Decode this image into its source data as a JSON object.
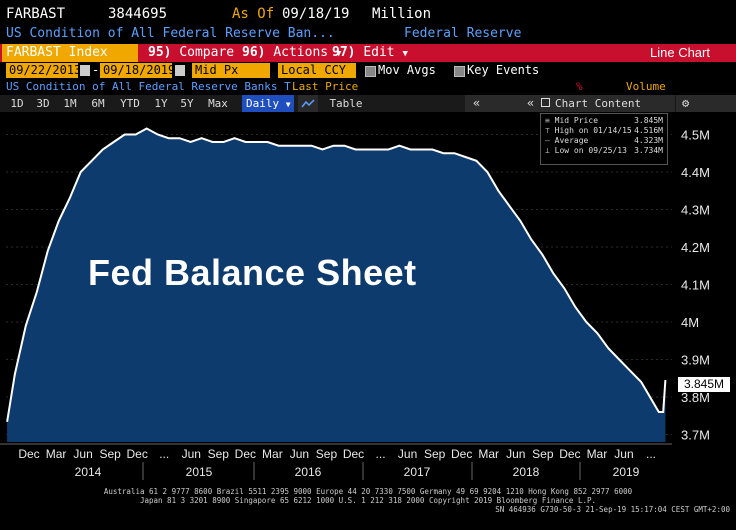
{
  "header": {
    "ticker": "FARBAST",
    "value": "3844695",
    "asof_label": "As Of",
    "asof_date": "09/18/19",
    "unit": "Million",
    "description": "US Condition of All Federal Reserve Ban...",
    "source": "Federal Reserve"
  },
  "menubar": {
    "security": "FARBAST Index",
    "compare_num": "95)",
    "compare": "Compare",
    "actions_num": "96)",
    "actions": "Actions",
    "edit_num": "97)",
    "edit": "Edit",
    "view": "Line Chart"
  },
  "controls": {
    "start_date": "09/22/2013",
    "end_date": "09/18/2019",
    "price_field": "Mid Px",
    "currency": "Local CCY",
    "mov_avgs": "Mov Avgs",
    "key_events": "Key Events"
  },
  "info_row": {
    "security_desc": "US Condition of All Federal Reserve Banks T...",
    "last_price": "Last Price",
    "pct": "%",
    "volume": "Volume"
  },
  "toolbar": {
    "ranges": [
      "1D",
      "3D",
      "1M",
      "6M",
      "YTD",
      "1Y",
      "5Y",
      "Max"
    ],
    "frequency": "Daily",
    "table": "Table",
    "chart_content": "Chart Content"
  },
  "legend": {
    "mid_price_label": "Mid Price",
    "mid_price_value": "3.845M",
    "high_label": "High on 01/14/15",
    "high_value": "4.516M",
    "average_label": "Average",
    "average_value": "4.323M",
    "low_label": "Low on 09/25/13",
    "low_value": "3.734M"
  },
  "overlay_title": "Fed Balance Sheet",
  "last_value": "3.845M",
  "colors": {
    "area_fill": "#0d3b6e",
    "line": "#ffffff",
    "bar_red": "#c8102e",
    "field_amber": "#f0a800",
    "text_amber": "#f0a800",
    "text_blue": "#5aa0ff"
  },
  "chart_data": {
    "type": "area",
    "ylim": [
      3.68,
      4.56
    ],
    "y_ticks": [
      3.7,
      3.8,
      3.9,
      4.0,
      4.1,
      4.2,
      4.3,
      4.4,
      4.5
    ],
    "y_tick_labels": [
      "3.7M",
      "3.8M",
      "3.9M",
      "4M",
      "4.1M",
      "4.2M",
      "4.3M",
      "4.4M",
      "4.5M"
    ],
    "x_tick_labels": [
      "Dec",
      "Mar",
      "Jun",
      "Sep",
      "Dec",
      "...",
      "Jun",
      "Sep",
      "Dec",
      "Mar",
      "Jun",
      "Sep",
      "Dec",
      "...",
      "Jun",
      "Sep",
      "Dec",
      "Mar",
      "Jun",
      "Sep",
      "Dec",
      "Mar",
      "Jun",
      "..."
    ],
    "year_labels": [
      "2014",
      "2015",
      "2016",
      "2017",
      "2018",
      "2019"
    ],
    "x": [
      2013.73,
      2013.8,
      2013.9,
      2014.0,
      2014.1,
      2014.2,
      2014.3,
      2014.4,
      2014.5,
      2014.6,
      2014.7,
      2014.8,
      2014.9,
      2015.0,
      2015.1,
      2015.2,
      2015.3,
      2015.4,
      2015.5,
      2015.6,
      2015.7,
      2015.8,
      2015.9,
      2016.0,
      2016.1,
      2016.2,
      2016.3,
      2016.4,
      2016.5,
      2016.6,
      2016.7,
      2016.8,
      2016.9,
      2017.0,
      2017.1,
      2017.2,
      2017.3,
      2017.4,
      2017.5,
      2017.6,
      2017.7,
      2017.8,
      2017.9,
      2018.0,
      2018.1,
      2018.2,
      2018.3,
      2018.4,
      2018.5,
      2018.6,
      2018.7,
      2018.8,
      2018.9,
      2019.0,
      2019.1,
      2019.2,
      2019.3,
      2019.4,
      2019.5,
      2019.6,
      2019.66,
      2019.7,
      2019.72
    ],
    "values": [
      3.734,
      3.86,
      3.99,
      4.08,
      4.19,
      4.27,
      4.33,
      4.4,
      4.43,
      4.46,
      4.48,
      4.5,
      4.5,
      4.516,
      4.5,
      4.49,
      4.49,
      4.48,
      4.49,
      4.48,
      4.48,
      4.49,
      4.48,
      4.48,
      4.48,
      4.47,
      4.47,
      4.47,
      4.47,
      4.46,
      4.47,
      4.47,
      4.46,
      4.46,
      4.46,
      4.46,
      4.47,
      4.46,
      4.46,
      4.46,
      4.45,
      4.45,
      4.44,
      4.43,
      4.4,
      4.35,
      4.31,
      4.27,
      4.22,
      4.18,
      4.13,
      4.09,
      4.04,
      4.0,
      3.97,
      3.93,
      3.9,
      3.87,
      3.84,
      3.79,
      3.76,
      3.76,
      3.845
    ]
  },
  "footer": {
    "line1": "Australia 61 2 9777 8600 Brazil 5511 2395 9000 Europe 44 20 7330 7500 Germany 49 69 9204 1210 Hong Kong 852 2977 6000",
    "line2": "Japan 81 3 3201 8900         Singapore 65 6212 1000         U.S. 1 212 318 2000             Copyright 2019 Bloomberg Finance L.P.",
    "line3": "SN 464936 G730-50-3 21-Sep-19 15:17:04 CEST GMT+2:00"
  }
}
